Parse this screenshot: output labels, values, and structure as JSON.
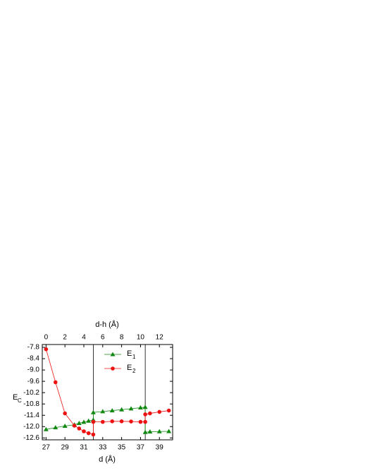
{
  "chart_data": {
    "type": "line",
    "xlabel": "d (Å)",
    "x2label": "d-h (Å)",
    "ylabel": "E",
    "ylabel_sub": "C",
    "xlim": [
      26.6,
      40.4
    ],
    "xticks": [
      27,
      29,
      31,
      33,
      35,
      37,
      39
    ],
    "x2lim": [
      -0.4,
      13.4
    ],
    "x2ticks": [
      0,
      2,
      4,
      6,
      8,
      10,
      12
    ],
    "ylim": [
      -12.7,
      -7.65
    ],
    "yticks": [
      -7.8,
      -8.4,
      {
        "value": -9.0,
        "label": "-9.0"
      },
      -9.6,
      -10.2,
      -10.8,
      -11.4,
      {
        "value": -12.0,
        "label": "-12.0"
      },
      -12.6
    ],
    "vlines": [
      32,
      37.5
    ],
    "series": [
      {
        "name": "E",
        "name_sub": "1",
        "color": "#118811",
        "marker": "triangle",
        "x": [
          27,
          28,
          29,
          30,
          30.5,
          31,
          31.5,
          32,
          32,
          33,
          34,
          35,
          36,
          37,
          37.5,
          37.5,
          38,
          39,
          40
        ],
        "values": [
          -12.15,
          -12.05,
          -11.97,
          -11.9,
          -11.82,
          -11.76,
          -11.7,
          -11.65,
          -11.25,
          -11.2,
          -11.15,
          -11.1,
          -11.05,
          -11.0,
          -10.97,
          -12.3,
          -12.27,
          -12.26,
          -12.25
        ]
      },
      {
        "name": "E",
        "name_sub": "2",
        "color": "#ee1111",
        "marker": "circle",
        "x": [
          27,
          28,
          29,
          30,
          30.5,
          31,
          31.5,
          32,
          32,
          33,
          34,
          35,
          36,
          37,
          37.5,
          37.5,
          38,
          39,
          40
        ],
        "values": [
          -7.9,
          -9.65,
          -11.3,
          -11.95,
          -12.1,
          -12.25,
          -12.35,
          -12.42,
          -11.75,
          -11.75,
          -11.72,
          -11.72,
          -11.73,
          -11.75,
          -11.75,
          -11.35,
          -11.3,
          -11.22,
          -11.15
        ]
      }
    ]
  }
}
